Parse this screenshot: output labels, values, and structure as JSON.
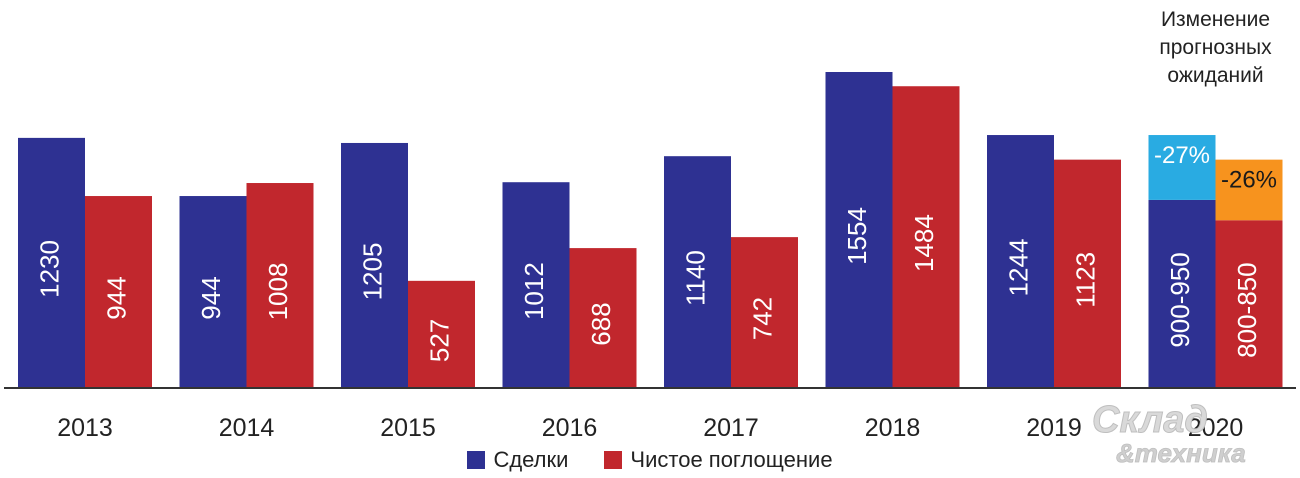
{
  "chart_data": {
    "type": "bar",
    "categories": [
      "2013",
      "2014",
      "2015",
      "2016",
      "2017",
      "2018",
      "2019",
      "2020"
    ],
    "series": [
      {
        "name": "Сделки",
        "color": "#2e3192",
        "values": [
          1230,
          944,
          1205,
          1012,
          1140,
          1554,
          1244,
          925
        ],
        "labels": [
          "1230",
          "944",
          "1205",
          "1012",
          "1140",
          "1554",
          "1244",
          "900-950"
        ]
      },
      {
        "name": "Чистое поглощение",
        "color": "#c1272d",
        "values": [
          944,
          1008,
          527,
          688,
          742,
          1484,
          1123,
          825
        ],
        "labels": [
          "944",
          "1008",
          "527",
          "688",
          "742",
          "1484",
          "1123",
          "800-850"
        ]
      }
    ],
    "forecast_change": {
      "category": "2020",
      "title": "Изменение прогнозных ожиданий",
      "items": [
        {
          "series": "Сделки",
          "label": "-27%",
          "from": 1244,
          "color": "#29abe2"
        },
        {
          "series": "Чистое поглощение",
          "label": "-26%",
          "from": 1123,
          "color": "#f7931e"
        }
      ]
    },
    "ylim": [
      0,
      1650
    ],
    "grid": false,
    "legend_position": "bottom",
    "title": "",
    "xlabel": "",
    "ylabel": ""
  },
  "watermark": {
    "line1": "Склад",
    "line2": "&техника"
  }
}
